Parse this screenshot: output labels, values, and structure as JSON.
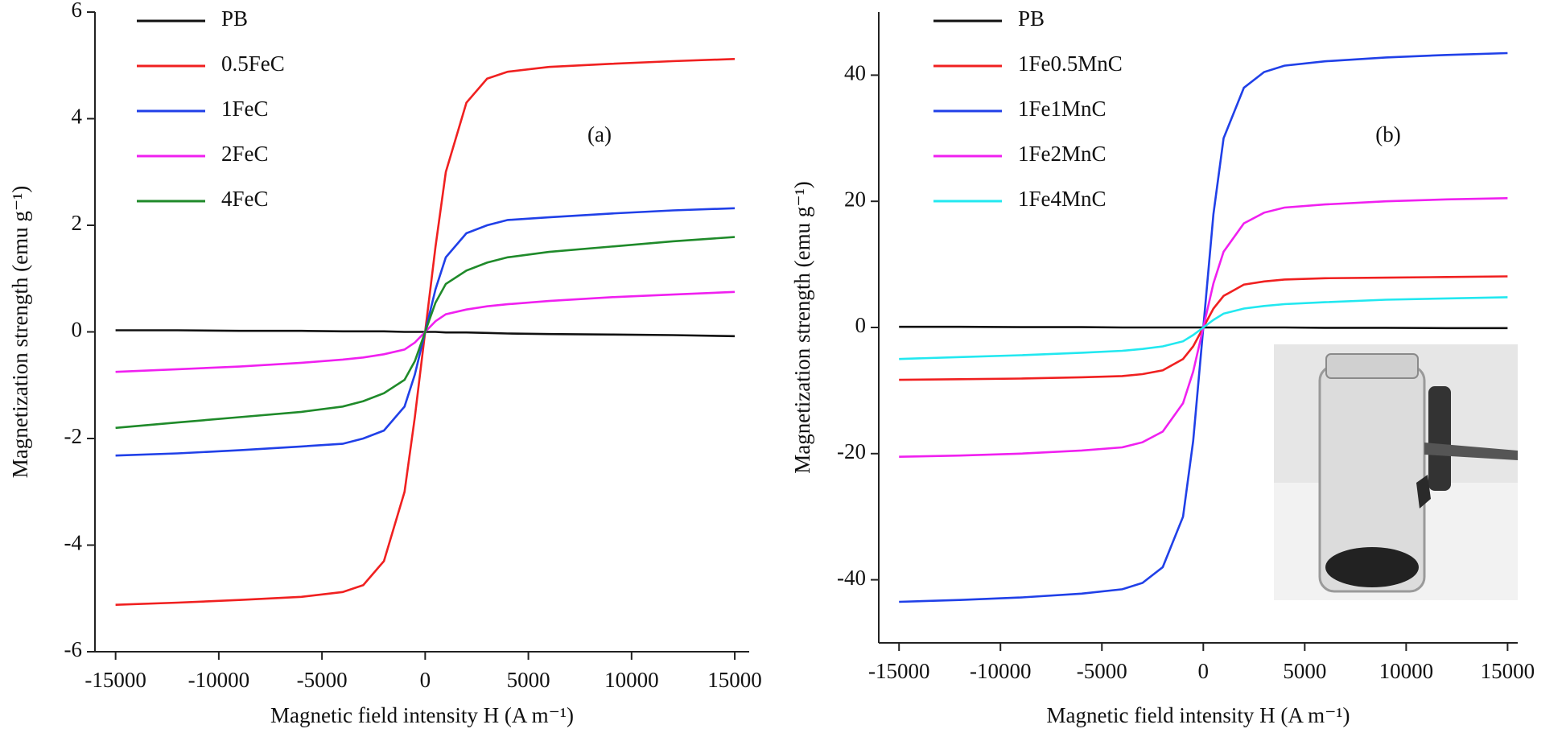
{
  "chart_data": [
    {
      "type": "line",
      "ylabel": "Magnetization strength (emu g⁻¹)",
      "xlabel": "Magnetic field intensity H (A m⁻¹)",
      "annotation": "(a)",
      "x": [
        -15000,
        -12000,
        -9000,
        -6000,
        -4000,
        -3000,
        -2000,
        -1000,
        -500,
        0,
        500,
        1000,
        2000,
        3000,
        4000,
        6000,
        9000,
        12000,
        15000
      ],
      "xlim": [
        -16000,
        15700
      ],
      "xticks": [
        -15000,
        -10000,
        -5000,
        0,
        5000,
        10000,
        15000
      ],
      "ylim": [
        -6,
        6
      ],
      "yticks": [
        -6,
        -4,
        -2,
        0,
        2,
        4,
        6
      ],
      "grid": false,
      "legend": "upper left",
      "series": [
        {
          "name": "PB",
          "color": "#111111",
          "values": [
            0.03,
            0.03,
            0.02,
            0.02,
            0.01,
            0.01,
            0.01,
            0,
            0,
            0,
            0,
            -0.01,
            -0.01,
            -0.02,
            -0.03,
            -0.04,
            -0.05,
            -0.06,
            -0.08
          ]
        },
        {
          "name": "0.5FeC",
          "color": "#f02020",
          "values": [
            -5.12,
            -5.08,
            -5.03,
            -4.97,
            -4.88,
            -4.75,
            -4.3,
            -3.0,
            -1.6,
            0,
            1.6,
            3.0,
            4.3,
            4.75,
            4.88,
            4.97,
            5.03,
            5.08,
            5.12
          ]
        },
        {
          "name": "1FeC",
          "color": "#2040e8",
          "values": [
            -2.32,
            -2.28,
            -2.22,
            -2.15,
            -2.1,
            -2.0,
            -1.85,
            -1.4,
            -0.8,
            0,
            0.8,
            1.4,
            1.85,
            2.0,
            2.1,
            2.15,
            2.22,
            2.28,
            2.32
          ]
        },
        {
          "name": "2FeC",
          "color": "#f020f0",
          "values": [
            -0.75,
            -0.7,
            -0.65,
            -0.58,
            -0.52,
            -0.48,
            -0.42,
            -0.33,
            -0.2,
            0,
            0.2,
            0.33,
            0.42,
            0.48,
            0.52,
            0.58,
            0.65,
            0.7,
            0.75
          ]
        },
        {
          "name": "4FeC",
          "color": "#1f8a2a",
          "values": [
            -1.8,
            -1.7,
            -1.6,
            -1.5,
            -1.4,
            -1.3,
            -1.15,
            -0.9,
            -0.55,
            0,
            0.55,
            0.9,
            1.15,
            1.3,
            1.4,
            1.5,
            1.6,
            1.7,
            1.78
          ]
        }
      ]
    },
    {
      "type": "line",
      "ylabel": "Magnetization strength (emu g⁻¹)",
      "xlabel": "Magnetic field intensity H (A m⁻¹)",
      "annotation": "(b)",
      "x": [
        -15000,
        -12000,
        -9000,
        -6000,
        -4000,
        -3000,
        -2000,
        -1000,
        -500,
        0,
        500,
        1000,
        2000,
        3000,
        4000,
        6000,
        9000,
        12000,
        15000
      ],
      "xlim": [
        -16000,
        15500
      ],
      "xticks": [
        -15000,
        -10000,
        -5000,
        0,
        5000,
        10000,
        15000
      ],
      "ylim": [
        -50,
        50
      ],
      "yticks": [
        -40,
        -20,
        0,
        20,
        40
      ],
      "grid": false,
      "legend": "upper left",
      "series": [
        {
          "name": "PB",
          "color": "#111111",
          "values": [
            0.1,
            0.1,
            0.05,
            0.05,
            0,
            0,
            0,
            0,
            0,
            0,
            0,
            0,
            0,
            0,
            0,
            -0.05,
            -0.05,
            -0.1,
            -0.1
          ]
        },
        {
          "name": "1Fe0.5MnC",
          "color": "#f02020",
          "values": [
            -8.3,
            -8.2,
            -8.1,
            -7.9,
            -7.7,
            -7.4,
            -6.8,
            -5,
            -3,
            0,
            3,
            5,
            6.8,
            7.3,
            7.6,
            7.8,
            7.9,
            8,
            8.1
          ]
        },
        {
          "name": "1Fe1MnC",
          "color": "#2040e8",
          "values": [
            -43.5,
            -43.2,
            -42.8,
            -42.2,
            -41.5,
            -40.5,
            -38,
            -30,
            -18,
            0,
            18,
            30,
            38,
            40.5,
            41.5,
            42.2,
            42.8,
            43.2,
            43.5
          ]
        },
        {
          "name": "1Fe2MnC",
          "color": "#f020f0",
          "values": [
            -20.5,
            -20.3,
            -20,
            -19.5,
            -19,
            -18.2,
            -16.5,
            -12,
            -7,
            0,
            7,
            12,
            16.5,
            18.2,
            19,
            19.5,
            20,
            20.3,
            20.5
          ]
        },
        {
          "name": "1Fe4MnC",
          "color": "#22e8f0",
          "values": [
            -5,
            -4.7,
            -4.4,
            -4,
            -3.7,
            -3.4,
            -3,
            -2.2,
            -1.2,
            0,
            1.2,
            2.2,
            3,
            3.4,
            3.7,
            4,
            4.4,
            4.6,
            4.8
          ]
        }
      ]
    }
  ]
}
